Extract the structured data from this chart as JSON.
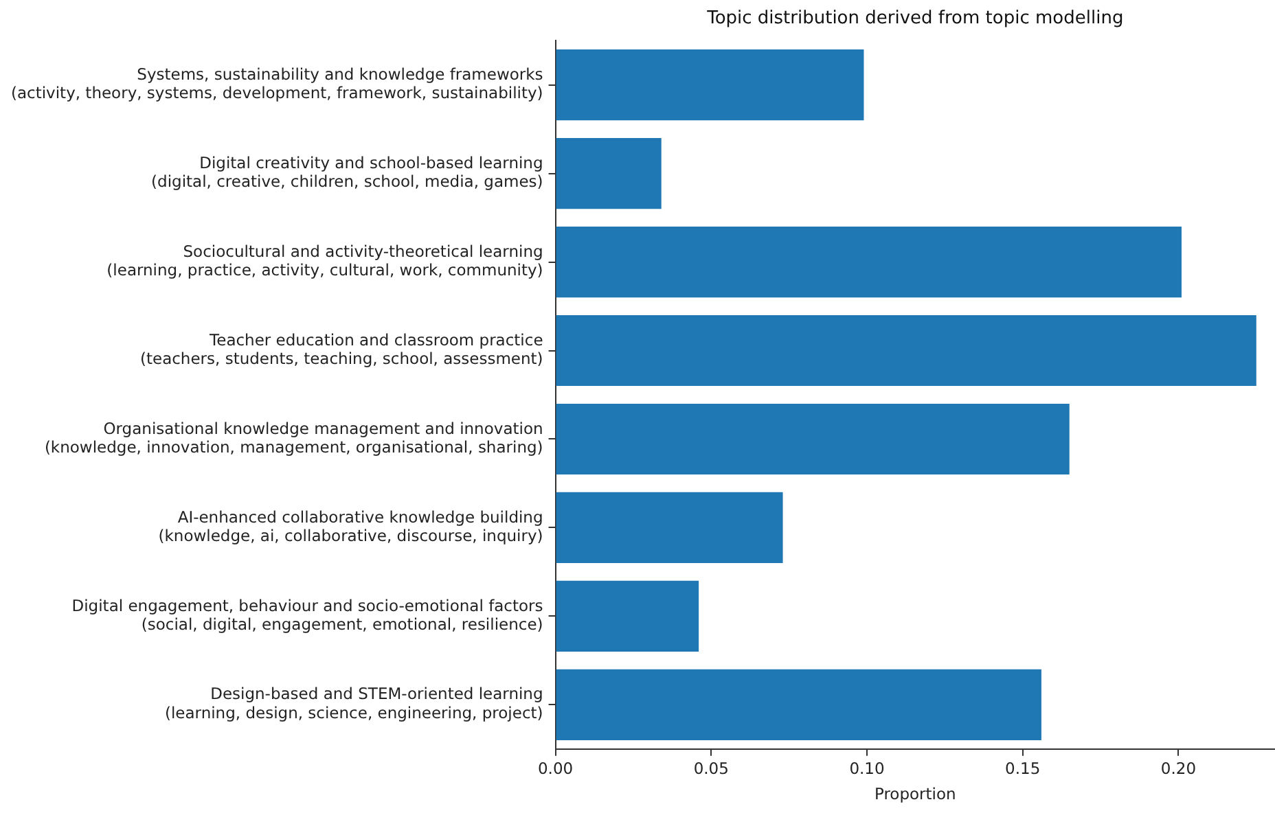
{
  "chart_data": {
    "type": "bar",
    "orientation": "horizontal",
    "title": "Topic distribution derived from topic modelling",
    "xlabel": "Proportion",
    "categories": [
      "Systems, sustainability and knowledge frameworks\n(activity, theory, systems, development, framework, sustainability)",
      "Digital creativity and school-based learning\n(digital, creative, children, school, media, games)",
      "Sociocultural and activity-theoretical learning\n(learning, practice, activity, cultural, work, community)",
      "Teacher education and classroom practice\n(teachers, students, teaching, school, assessment)",
      "Organisational knowledge management and innovation\n(knowledge, innovation, management, organisational, sharing)",
      "AI-enhanced collaborative knowledge building\n(knowledge, ai, collaborative, discourse, inquiry)",
      "Digital engagement, behaviour and socio-emotional factors\n(social, digital, engagement, emotional, resilience)",
      "Design-based and STEM-oriented learning\n(learning, design, science, engineering, project)"
    ],
    "values": [
      0.099,
      0.034,
      0.201,
      0.225,
      0.165,
      0.073,
      0.046,
      0.156
    ],
    "color": "#1f77b4",
    "xlim": [
      0,
      0.231
    ],
    "xticks": [
      {
        "value": 0,
        "label": "0.00"
      },
      {
        "value": 0.05,
        "label": "0.05"
      },
      {
        "value": 0.1,
        "label": "0.10"
      },
      {
        "value": 0.15,
        "label": "0.15"
      },
      {
        "value": 0.2,
        "label": "0.20"
      }
    ],
    "grid": false,
    "legend": false
  }
}
